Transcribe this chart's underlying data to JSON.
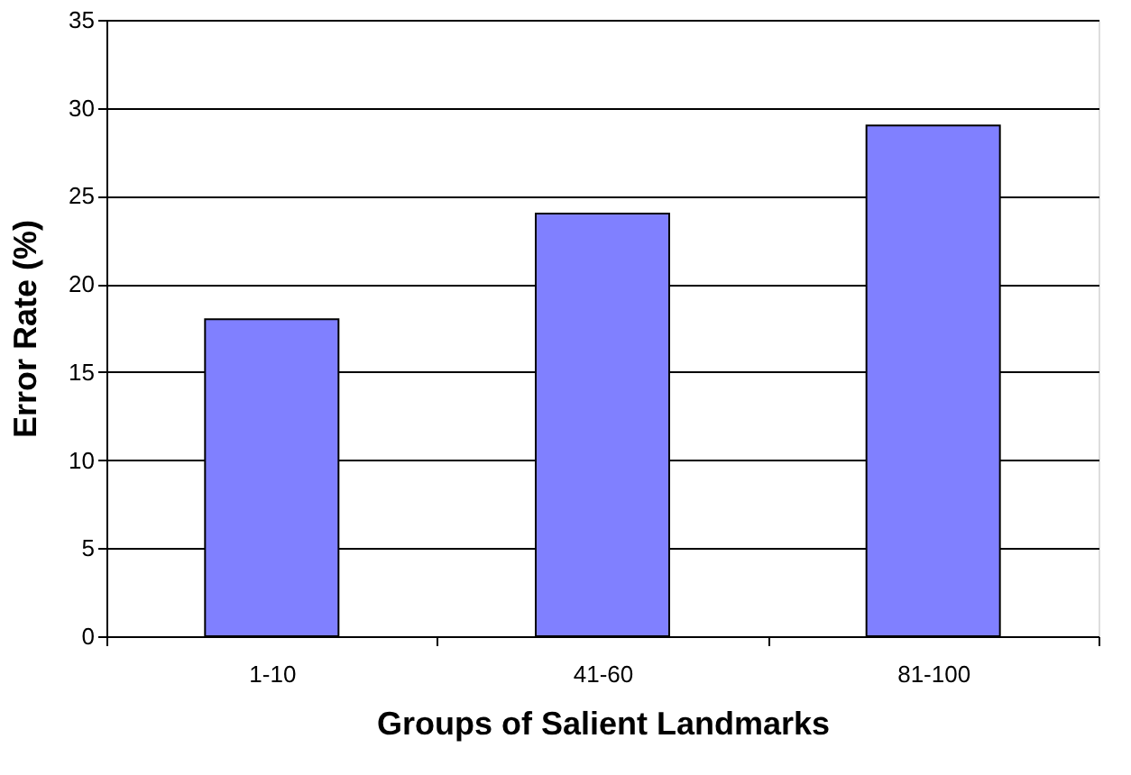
{
  "chart_data": {
    "type": "bar",
    "xlabel": "Groups of Salient Landmarks",
    "ylabel": "Error Rate (%)",
    "categories": [
      "1-10",
      "41-60",
      "81-100"
    ],
    "values": [
      18,
      24,
      29
    ],
    "color": "#8080ff",
    "ylim": [
      0,
      35
    ],
    "yticks": [
      0,
      5,
      10,
      15,
      20,
      25,
      30,
      35
    ],
    "grid": "y"
  }
}
